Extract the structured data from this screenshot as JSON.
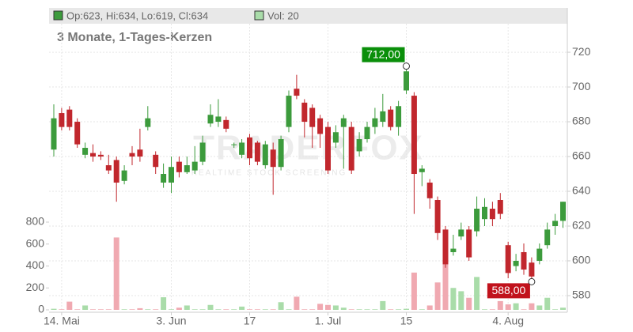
{
  "chart_data": {
    "type": "candlestick",
    "header_ohlc": "Op:623, Hi:634, Lo:619, Cl:634",
    "header_volume": "Vol: 20",
    "subtitle": "3 Monate, 1-Tages-Kerzen",
    "watermark": "TRADERFOX",
    "watermark_sub": "REALTIME STOCK SCREENING",
    "up_color": "#3c9b3c",
    "down_color": "#c1272d",
    "up_volume_color": "#a9dca9",
    "down_volume_color": "#f0a9b1",
    "grid": true,
    "categories": [
      null,
      "14. Mai",
      null,
      null,
      null,
      null,
      null,
      null,
      null,
      null,
      null,
      null,
      null,
      null,
      null,
      "3. Jun",
      null,
      null,
      null,
      null,
      null,
      null,
      null,
      null,
      null,
      "17",
      null,
      null,
      null,
      null,
      null,
      null,
      null,
      null,
      null,
      "1. Jul",
      null,
      null,
      null,
      null,
      null,
      null,
      null,
      null,
      null,
      "15",
      null,
      null,
      null,
      null,
      null,
      null,
      null,
      null,
      null,
      null,
      null,
      null,
      "4. Aug",
      null,
      null,
      null,
      null,
      null,
      null,
      null
    ],
    "open": [
      664,
      685,
      687,
      680,
      661,
      662,
      661,
      655,
      658,
      646,
      662,
      664,
      677,
      661,
      645,
      645,
      657,
      651,
      652,
      657,
      679,
      680,
      681,
      667,
      661,
      671,
      668,
      655,
      664,
      654,
      677,
      699,
      691,
      688,
      682,
      677,
      668,
      677,
      677,
      663,
      670,
      677,
      680,
      687,
      677,
      698,
      695,
      651,
      645,
      635,
      618,
      605,
      614,
      618,
      617,
      624,
      630,
      635,
      609,
      597,
      605,
      599,
      600,
      609,
      620,
      623
    ],
    "high": [
      690,
      688,
      689,
      682,
      668,
      667,
      663,
      661,
      660,
      655,
      666,
      676,
      689,
      663,
      656,
      660,
      660,
      660,
      666,
      672,
      690,
      693,
      683,
      668,
      670,
      673,
      669,
      669,
      668,
      672,
      698,
      707,
      693,
      690,
      684,
      680,
      678,
      684,
      680,
      674,
      680,
      688,
      696,
      689,
      692,
      712,
      697,
      655,
      647,
      637,
      620,
      615,
      622,
      620,
      637,
      636,
      634,
      639,
      611,
      604,
      610,
      602,
      610,
      622,
      627,
      634
    ],
    "low": [
      660,
      675,
      675,
      665,
      659,
      657,
      658,
      650,
      634,
      644,
      655,
      657,
      675,
      650,
      642,
      639,
      648,
      650,
      650,
      655,
      677,
      677,
      674,
      665,
      659,
      655,
      655,
      653,
      638,
      652,
      674,
      693,
      671,
      665,
      665,
      650,
      665,
      653,
      650,
      660,
      668,
      673,
      677,
      675,
      672,
      696,
      627,
      643,
      630,
      612,
      596,
      603,
      612,
      600,
      614,
      620,
      620,
      624,
      590,
      594,
      592,
      588,
      598,
      607,
      615,
      619
    ],
    "close": [
      682,
      677,
      677,
      667,
      665,
      660,
      660,
      652,
      645,
      652,
      660,
      660,
      682,
      654,
      650,
      654,
      651,
      655,
      657,
      668,
      684,
      683,
      676,
      667,
      668,
      659,
      657,
      667,
      654,
      670,
      695,
      695,
      680,
      677,
      673,
      652,
      674,
      682,
      652,
      670,
      677,
      682,
      686,
      677,
      689,
      709,
      650,
      653,
      636,
      616,
      598,
      607,
      618,
      602,
      630,
      631,
      624,
      627,
      593,
      600,
      595,
      591,
      607,
      618,
      623,
      634
    ],
    "volume": [
      10,
      5,
      75,
      5,
      40,
      5,
      5,
      5,
      660,
      5,
      5,
      15,
      5,
      5,
      115,
      5,
      20,
      40,
      5,
      5,
      45,
      5,
      5,
      5,
      30,
      5,
      5,
      5,
      5,
      70,
      5,
      120,
      5,
      5,
      55,
      45,
      40,
      20,
      5,
      5,
      5,
      5,
      80,
      5,
      5,
      10,
      340,
      5,
      40,
      250,
      420,
      200,
      170,
      110,
      300,
      5,
      5,
      80,
      50,
      60,
      5,
      60,
      40,
      110,
      5,
      20
    ],
    "ylim": [
      571.8,
      736.4
    ],
    "yticks": [
      580,
      600,
      620,
      640,
      660,
      680,
      700,
      720
    ],
    "volume_ylim": [
      0,
      800
    ],
    "volume_ticks": [
      0,
      200,
      400,
      600,
      800
    ],
    "annotations": [
      {
        "label": "712,00",
        "value": 712,
        "index": 45
      },
      {
        "label": "588,00",
        "value": 588,
        "index": 61
      }
    ]
  }
}
